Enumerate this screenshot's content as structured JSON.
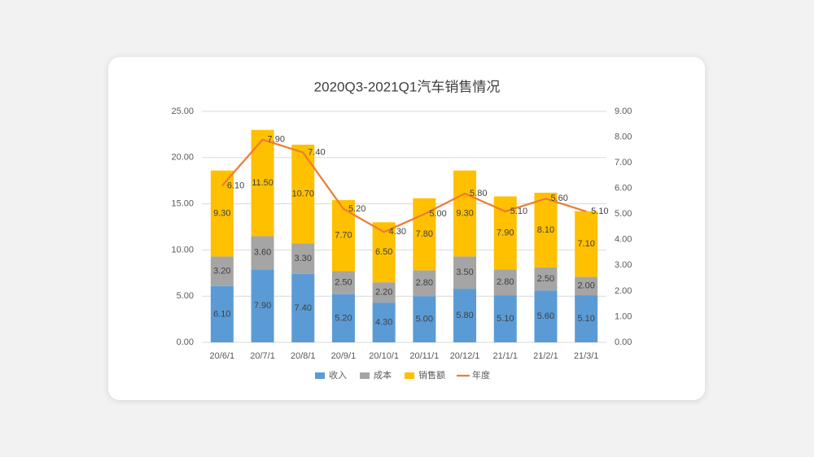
{
  "chart_data": {
    "type": "bar",
    "stacked": true,
    "title": "2020Q3-2021Q1汽车销售情况",
    "categories": [
      "20/6/1",
      "20/7/1",
      "20/8/1",
      "20/9/1",
      "20/10/1",
      "20/11/1",
      "20/12/1",
      "21/1/1",
      "21/2/1",
      "21/3/1"
    ],
    "series": [
      {
        "name": "收入",
        "color": "#5b9bd5",
        "values": [
          6.1,
          7.9,
          7.4,
          5.2,
          4.3,
          5.0,
          5.8,
          5.1,
          5.6,
          5.1
        ],
        "value_labels": [
          "6.10",
          "7.90",
          "7.40",
          "5.20",
          "4.30",
          "5.00",
          "5.80",
          "5.10",
          "5.60",
          "5.10"
        ]
      },
      {
        "name": "成本",
        "color": "#a5a5a5",
        "values": [
          3.2,
          3.6,
          3.3,
          2.5,
          2.2,
          2.8,
          3.5,
          2.8,
          2.5,
          2.0
        ],
        "value_labels": [
          "3.20",
          "3.60",
          "3.30",
          "2.50",
          "2.20",
          "2.80",
          "3.50",
          "2.80",
          "2.50",
          "2.00"
        ]
      },
      {
        "name": "销售额",
        "color": "#ffc000",
        "values": [
          9.3,
          11.5,
          10.7,
          7.7,
          6.5,
          7.8,
          9.3,
          7.9,
          8.1,
          7.1
        ],
        "value_labels": [
          "9.30",
          "11.50",
          "10.70",
          "7.70",
          "6.50",
          "7.80",
          "9.30",
          "7.90",
          "8.10",
          "7.10"
        ]
      },
      {
        "name": "年度",
        "type": "line",
        "axis": "y2",
        "color": "#ed7d31",
        "values": [
          6.1,
          7.9,
          7.4,
          5.2,
          4.3,
          5.0,
          5.8,
          5.1,
          5.6,
          5.1
        ],
        "value_labels": [
          "6.10",
          "7.90",
          "7.40",
          "5.20",
          "4.30",
          "5.00",
          "5.80",
          "5.10",
          "5.60",
          "5.10"
        ]
      }
    ],
    "ylim": [
      0,
      25
    ],
    "yticks": [
      {
        "value": 0,
        "label": "0.00"
      },
      {
        "value": 5,
        "label": "5.00"
      },
      {
        "value": 10,
        "label": "10.00"
      },
      {
        "value": 15,
        "label": "15.00"
      },
      {
        "value": 20,
        "label": "20.00"
      },
      {
        "value": 25,
        "label": "25.00"
      }
    ],
    "y2lim": [
      0,
      9
    ],
    "y2ticks": [
      {
        "value": 0,
        "label": "0.00"
      },
      {
        "value": 1,
        "label": "1.00"
      },
      {
        "value": 2,
        "label": "2.00"
      },
      {
        "value": 3,
        "label": "3.00"
      },
      {
        "value": 4,
        "label": "4.00"
      },
      {
        "value": 5,
        "label": "5.00"
      },
      {
        "value": 6,
        "label": "6.00"
      },
      {
        "value": 7,
        "label": "7.00"
      },
      {
        "value": 8,
        "label": "8.00"
      },
      {
        "value": 9,
        "label": "9.00"
      }
    ],
    "grid": true,
    "legend": "bottom"
  }
}
